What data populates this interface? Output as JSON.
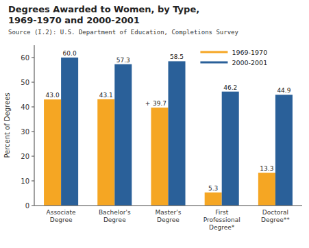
{
  "chart_data": {
    "type": "bar",
    "title": "Degrees Awarded to Women, by Type,\n1969-1970 and 2000-2001",
    "annotations": [
      {
        "text": "Source (I.2): U.S. Department of Education, Completions Survey"
      },
      {
        "text": "+",
        "series": "1969-1970",
        "category": "Master's\nDegree"
      }
    ],
    "categories": [
      "Associate\nDegree",
      "Bachelor's\nDegree",
      "Master's\nDegree",
      "First\nProfessional\nDegree*",
      "Doctoral\nDegree**"
    ],
    "series": [
      {
        "name": "1969-1970",
        "color": "#F5A623",
        "values": [
          43.0,
          43.1,
          39.7,
          5.3,
          13.3
        ],
        "value_labels": [
          "43.0",
          "43.1",
          "39.7",
          "5.3",
          "13.3"
        ]
      },
      {
        "name": "2000-2001",
        "color": "#2A6099",
        "values": [
          60.0,
          57.3,
          58.5,
          46.2,
          44.9
        ],
        "value_labels": [
          "60.0",
          "57.3",
          "58.5",
          "46.2",
          "44.9"
        ]
      }
    ],
    "y_label": "Percent of Degrees",
    "ylim": [
      0,
      65
    ],
    "yticks": [
      0,
      10,
      20,
      30,
      40,
      50,
      60
    ],
    "grid": false,
    "legend": "upper right",
    "data_labels": true
  }
}
